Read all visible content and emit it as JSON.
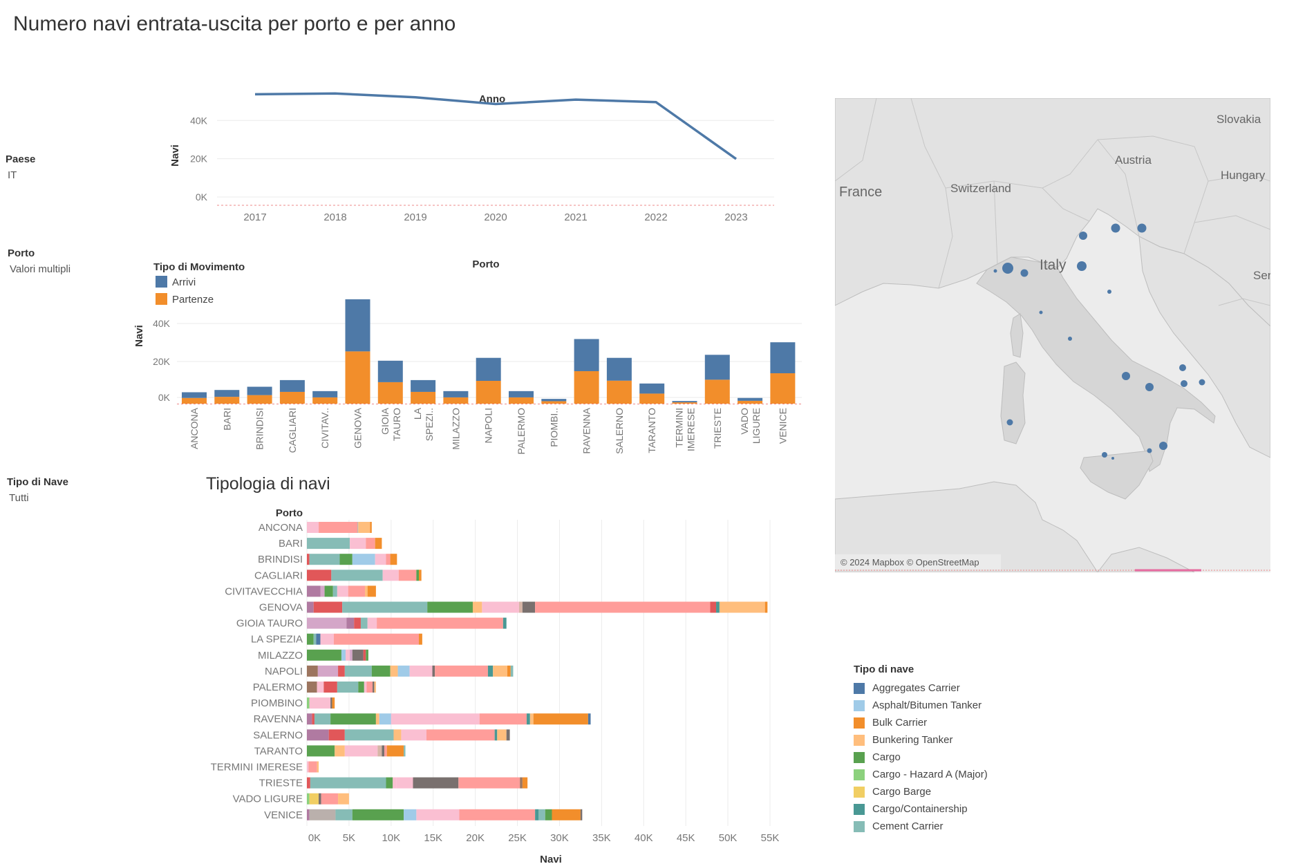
{
  "dashboard": {
    "title": "Numero navi entrata-uscita per porto e per anno"
  },
  "filters": [
    {
      "title": "Paese",
      "value": "IT"
    },
    {
      "title": "Porto",
      "value": "Valori multipli"
    },
    {
      "title": "Tipo di Nave",
      "value": "Tutti"
    }
  ],
  "map": {
    "attribution": "© 2024 Mapbox © OpenStreetMap",
    "place_labels": [
      "Slovakia",
      "Austria",
      "Hungary",
      "France",
      "Switzerland",
      "Italy",
      "Ser"
    ]
  },
  "colors": {
    "arrivi": "#4e79a7",
    "partenze": "#f28e2b",
    "line": "#4e79a7",
    "map_dot": "#4e79a7"
  },
  "ship_legend": {
    "title": "Tipo di nave",
    "items": [
      {
        "label": "Aggregates Carrier",
        "color": "#4e79a7"
      },
      {
        "label": "Asphalt/Bitumen Tanker",
        "color": "#a0cbe8"
      },
      {
        "label": "Bulk Carrier",
        "color": "#f28e2b"
      },
      {
        "label": "Bunkering Tanker",
        "color": "#ffbe7d"
      },
      {
        "label": "Cargo",
        "color": "#59a14f"
      },
      {
        "label": "Cargo - Hazard A (Major)",
        "color": "#8cd17d"
      },
      {
        "label": "Cargo Barge",
        "color": "#f1ce63"
      },
      {
        "label": "Cargo/Containership",
        "color": "#499894"
      },
      {
        "label": "Cement Carrier",
        "color": "#86bcb6"
      }
    ]
  },
  "chart_data": [
    {
      "type": "line",
      "title": "Anno",
      "ylabel": "Navi",
      "x": [
        "2017",
        "2018",
        "2019",
        "2020",
        "2021",
        "2022",
        "2023"
      ],
      "y": [
        53700,
        54100,
        52100,
        48600,
        50900,
        49600,
        19900
      ],
      "yticks": [
        "0K",
        "20K",
        "40K"
      ],
      "ylim": [
        0,
        56000
      ]
    },
    {
      "type": "bar",
      "stacked": true,
      "title": "Porto",
      "ylabel": "Navi",
      "legend_title": "Tipo di Movimento",
      "categories": [
        "ANCONA",
        "BARI",
        "BRINDISI",
        "CAGLIARI",
        "CIVITAV..",
        "GENOVA",
        "GIOIA TAURO",
        "LA SPEZI..",
        "MILAZZO",
        "NAPOLI",
        "PALERMO",
        "PIOMBI..",
        "RAVENNA",
        "SALERNO",
        "TARANTO",
        "TERMINI IMERESE",
        "TRIESTE",
        "VADO LIGURE",
        "VENICE"
      ],
      "series": [
        {
          "name": "Partenze",
          "values": [
            3000,
            3600,
            4500,
            6200,
            3300,
            27500,
            11300,
            6200,
            3300,
            12000,
            3300,
            1300,
            17100,
            12100,
            5300,
            700,
            12600,
            1500,
            16000
          ]
        },
        {
          "name": "Arrivi",
          "values": [
            3000,
            3600,
            4400,
            6200,
            3300,
            27400,
            11300,
            6200,
            3300,
            12100,
            3300,
            1200,
            16900,
            12000,
            5300,
            700,
            13100,
            1500,
            16300
          ]
        }
      ],
      "yticks": [
        "0K",
        "20K",
        "40K"
      ],
      "ylim": [
        0,
        56000
      ]
    },
    {
      "type": "bar",
      "orientation": "horizontal",
      "stacked": true,
      "title": "Tipologia di navi",
      "row_header": "Porto",
      "xlabel": "Navi",
      "xticks": [
        "0K",
        "5K",
        "10K",
        "15K",
        "20K",
        "25K",
        "30K",
        "35K",
        "40K",
        "45K",
        "50K",
        "55K"
      ],
      "xlim": [
        0,
        55000
      ],
      "rows": [
        {
          "port": "ANCONA",
          "segments": [
            {
              "v": 1400,
              "c": "#fabfd2"
            },
            {
              "v": 4600,
              "c": "#ff9d9a"
            },
            {
              "v": 100,
              "c": "#bab0ac"
            },
            {
              "v": 1400,
              "c": "#ffbe7d"
            },
            {
              "v": 200,
              "c": "#f28e2b"
            }
          ]
        },
        {
          "port": "BARI",
          "segments": [
            {
              "v": 5100,
              "c": "#86bcb6"
            },
            {
              "v": 1900,
              "c": "#fabfd2"
            },
            {
              "v": 1100,
              "c": "#ff9d9a"
            },
            {
              "v": 800,
              "c": "#f28e2b"
            }
          ]
        },
        {
          "port": "BRINDISI",
          "segments": [
            {
              "v": 300,
              "c": "#e15759"
            },
            {
              "v": 3600,
              "c": "#86bcb6"
            },
            {
              "v": 1500,
              "c": "#59a14f"
            },
            {
              "v": 2700,
              "c": "#a0cbe8"
            },
            {
              "v": 1300,
              "c": "#fabfd2"
            },
            {
              "v": 500,
              "c": "#ff9d9a"
            },
            {
              "v": 800,
              "c": "#f28e2b"
            }
          ]
        },
        {
          "port": "CAGLIARI",
          "segments": [
            {
              "v": 2900,
              "c": "#e15759"
            },
            {
              "v": 6100,
              "c": "#86bcb6"
            },
            {
              "v": 1900,
              "c": "#fabfd2"
            },
            {
              "v": 2100,
              "c": "#ff9d9a"
            },
            {
              "v": 300,
              "c": "#59a14f"
            },
            {
              "v": 300,
              "c": "#f28e2b"
            }
          ]
        },
        {
          "port": "CIVITAVECCHIA",
          "segments": [
            {
              "v": 1600,
              "c": "#b07aa1"
            },
            {
              "v": 500,
              "c": "#d4a6c8"
            },
            {
              "v": 1000,
              "c": "#59a14f"
            },
            {
              "v": 500,
              "c": "#86bcb6"
            },
            {
              "v": 1300,
              "c": "#fabfd2"
            },
            {
              "v": 2000,
              "c": "#ff9d9a"
            },
            {
              "v": 300,
              "c": "#ffbe7d"
            },
            {
              "v": 1000,
              "c": "#f28e2b"
            }
          ]
        },
        {
          "port": "GENOVA",
          "segments": [
            {
              "v": 800,
              "c": "#b07aa1"
            },
            {
              "v": 3400,
              "c": "#e15759"
            },
            {
              "v": 10100,
              "c": "#86bcb6"
            },
            {
              "v": 5400,
              "c": "#59a14f"
            },
            {
              "v": 1100,
              "c": "#ffbe7d"
            },
            {
              "v": 4400,
              "c": "#fabfd2"
            },
            {
              "v": 400,
              "c": "#d7b5a6"
            },
            {
              "v": 1500,
              "c": "#79706e"
            },
            {
              "v": 20800,
              "c": "#ff9d9a"
            },
            {
              "v": 700,
              "c": "#e15759"
            },
            {
              "v": 400,
              "c": "#499894"
            },
            {
              "v": 5400,
              "c": "#ffbe7d"
            },
            {
              "v": 300,
              "c": "#f28e2b"
            }
          ]
        },
        {
          "port": "GIOIA TAURO",
          "segments": [
            {
              "v": 4700,
              "c": "#d4a6c8"
            },
            {
              "v": 900,
              "c": "#b07aa1"
            },
            {
              "v": 800,
              "c": "#e15759"
            },
            {
              "v": 800,
              "c": "#86bcb6"
            },
            {
              "v": 1100,
              "c": "#fabfd2"
            },
            {
              "v": 15000,
              "c": "#ff9d9a"
            },
            {
              "v": 400,
              "c": "#499894"
            }
          ]
        },
        {
          "port": "LA SPEZIA",
          "segments": [
            {
              "v": 800,
              "c": "#59a14f"
            },
            {
              "v": 300,
              "c": "#86bcb6"
            },
            {
              "v": 500,
              "c": "#4e79a7"
            },
            {
              "v": 1600,
              "c": "#fabfd2"
            },
            {
              "v": 10100,
              "c": "#ff9d9a"
            },
            {
              "v": 400,
              "c": "#f28e2b"
            }
          ]
        },
        {
          "port": "MILAZZO",
          "segments": [
            {
              "v": 4100,
              "c": "#59a14f"
            },
            {
              "v": 500,
              "c": "#a0cbe8"
            },
            {
              "v": 500,
              "c": "#fabfd2"
            },
            {
              "v": 300,
              "c": "#d4a6c8"
            },
            {
              "v": 1300,
              "c": "#79706e"
            },
            {
              "v": 300,
              "c": "#e15759"
            },
            {
              "v": 300,
              "c": "#59a14f"
            }
          ]
        },
        {
          "port": "NAPOLI",
          "segments": [
            {
              "v": 1300,
              "c": "#9c755f"
            },
            {
              "v": 2400,
              "c": "#d4a6c8"
            },
            {
              "v": 800,
              "c": "#e15759"
            },
            {
              "v": 3200,
              "c": "#86bcb6"
            },
            {
              "v": 2200,
              "c": "#59a14f"
            },
            {
              "v": 900,
              "c": "#ffbe7d"
            },
            {
              "v": 1400,
              "c": "#a0cbe8"
            },
            {
              "v": 2700,
              "c": "#fabfd2"
            },
            {
              "v": 300,
              "c": "#79706e"
            },
            {
              "v": 6300,
              "c": "#ff9d9a"
            },
            {
              "v": 600,
              "c": "#499894"
            },
            {
              "v": 1700,
              "c": "#ffbe7d"
            },
            {
              "v": 400,
              "c": "#f28e2b"
            },
            {
              "v": 300,
              "c": "#86bcb6"
            }
          ]
        },
        {
          "port": "PALERMO",
          "segments": [
            {
              "v": 1200,
              "c": "#9c755f"
            },
            {
              "v": 800,
              "c": "#fabfd2"
            },
            {
              "v": 1600,
              "c": "#e15759"
            },
            {
              "v": 2500,
              "c": "#86bcb6"
            },
            {
              "v": 700,
              "c": "#59a14f"
            },
            {
              "v": 300,
              "c": "#fabfd2"
            },
            {
              "v": 700,
              "c": "#ff9d9a"
            },
            {
              "v": 200,
              "c": "#79706e"
            },
            {
              "v": 200,
              "c": "#ffbe7d"
            }
          ]
        },
        {
          "port": "PIOMBINO",
          "segments": [
            {
              "v": 300,
              "c": "#8cd17d"
            },
            {
              "v": 2500,
              "c": "#fabfd2"
            },
            {
              "v": 200,
              "c": "#79706e"
            },
            {
              "v": 300,
              "c": "#f28e2b"
            }
          ]
        },
        {
          "port": "RAVENNA",
          "segments": [
            {
              "v": 600,
              "c": "#b07aa1"
            },
            {
              "v": 300,
              "c": "#e15759"
            },
            {
              "v": 1900,
              "c": "#86bcb6"
            },
            {
              "v": 5400,
              "c": "#59a14f"
            },
            {
              "v": 400,
              "c": "#ffbe7d"
            },
            {
              "v": 1400,
              "c": "#a0cbe8"
            },
            {
              "v": 10500,
              "c": "#fabfd2"
            },
            {
              "v": 5600,
              "c": "#ff9d9a"
            },
            {
              "v": 400,
              "c": "#499894"
            },
            {
              "v": 400,
              "c": "#ffbe7d"
            },
            {
              "v": 6500,
              "c": "#f28e2b"
            },
            {
              "v": 300,
              "c": "#4e79a7"
            }
          ]
        },
        {
          "port": "SALERNO",
          "segments": [
            {
              "v": 2600,
              "c": "#b07aa1"
            },
            {
              "v": 1900,
              "c": "#e15759"
            },
            {
              "v": 5800,
              "c": "#86bcb6"
            },
            {
              "v": 900,
              "c": "#ffbe7d"
            },
            {
              "v": 3000,
              "c": "#fabfd2"
            },
            {
              "v": 8100,
              "c": "#ff9d9a"
            },
            {
              "v": 300,
              "c": "#499894"
            },
            {
              "v": 1100,
              "c": "#ffbe7d"
            },
            {
              "v": 400,
              "c": "#79706e"
            }
          ]
        },
        {
          "port": "TARANTO",
          "segments": [
            {
              "v": 3300,
              "c": "#59a14f"
            },
            {
              "v": 1200,
              "c": "#ffbe7d"
            },
            {
              "v": 3900,
              "c": "#fabfd2"
            },
            {
              "v": 500,
              "c": "#d7b5a6"
            },
            {
              "v": 300,
              "c": "#79706e"
            },
            {
              "v": 300,
              "c": "#ff9d9a"
            },
            {
              "v": 2000,
              "c": "#f28e2b"
            },
            {
              "v": 200,
              "c": "#86bcb6"
            }
          ]
        },
        {
          "port": "TERMINI IMERESE",
          "segments": [
            {
              "v": 200,
              "c": "#fabfd2"
            },
            {
              "v": 1000,
              "c": "#ff9d9a"
            },
            {
              "v": 200,
              "c": "#ffbe7d"
            }
          ]
        },
        {
          "port": "TRIESTE",
          "segments": [
            {
              "v": 400,
              "c": "#e15759"
            },
            {
              "v": 9000,
              "c": "#86bcb6"
            },
            {
              "v": 800,
              "c": "#59a14f"
            },
            {
              "v": 400,
              "c": "#fabfd2"
            },
            {
              "v": 2000,
              "c": "#fabfd2"
            },
            {
              "v": 5400,
              "c": "#79706e"
            },
            {
              "v": 7300,
              "c": "#ff9d9a"
            },
            {
              "v": 300,
              "c": "#9c755f"
            },
            {
              "v": 600,
              "c": "#f28e2b"
            }
          ]
        },
        {
          "port": "VADO LIGURE",
          "segments": [
            {
              "v": 300,
              "c": "#8cd17d"
            },
            {
              "v": 1100,
              "c": "#f1ce63"
            },
            {
              "v": 300,
              "c": "#79706e"
            },
            {
              "v": 2000,
              "c": "#ff9d9a"
            },
            {
              "v": 1300,
              "c": "#ffbe7d"
            }
          ]
        },
        {
          "port": "VENICE",
          "segments": [
            {
              "v": 300,
              "c": "#b07aa1"
            },
            {
              "v": 3100,
              "c": "#bab0ac"
            },
            {
              "v": 2000,
              "c": "#86bcb6"
            },
            {
              "v": 6100,
              "c": "#59a14f"
            },
            {
              "v": 1500,
              "c": "#a0cbe8"
            },
            {
              "v": 5100,
              "c": "#fabfd2"
            },
            {
              "v": 9000,
              "c": "#ff9d9a"
            },
            {
              "v": 400,
              "c": "#499894"
            },
            {
              "v": 800,
              "c": "#86bcb6"
            },
            {
              "v": 800,
              "c": "#59a14f"
            },
            {
              "v": 3400,
              "c": "#f28e2b"
            },
            {
              "v": 200,
              "c": "#79706e"
            }
          ]
        }
      ]
    }
  ]
}
